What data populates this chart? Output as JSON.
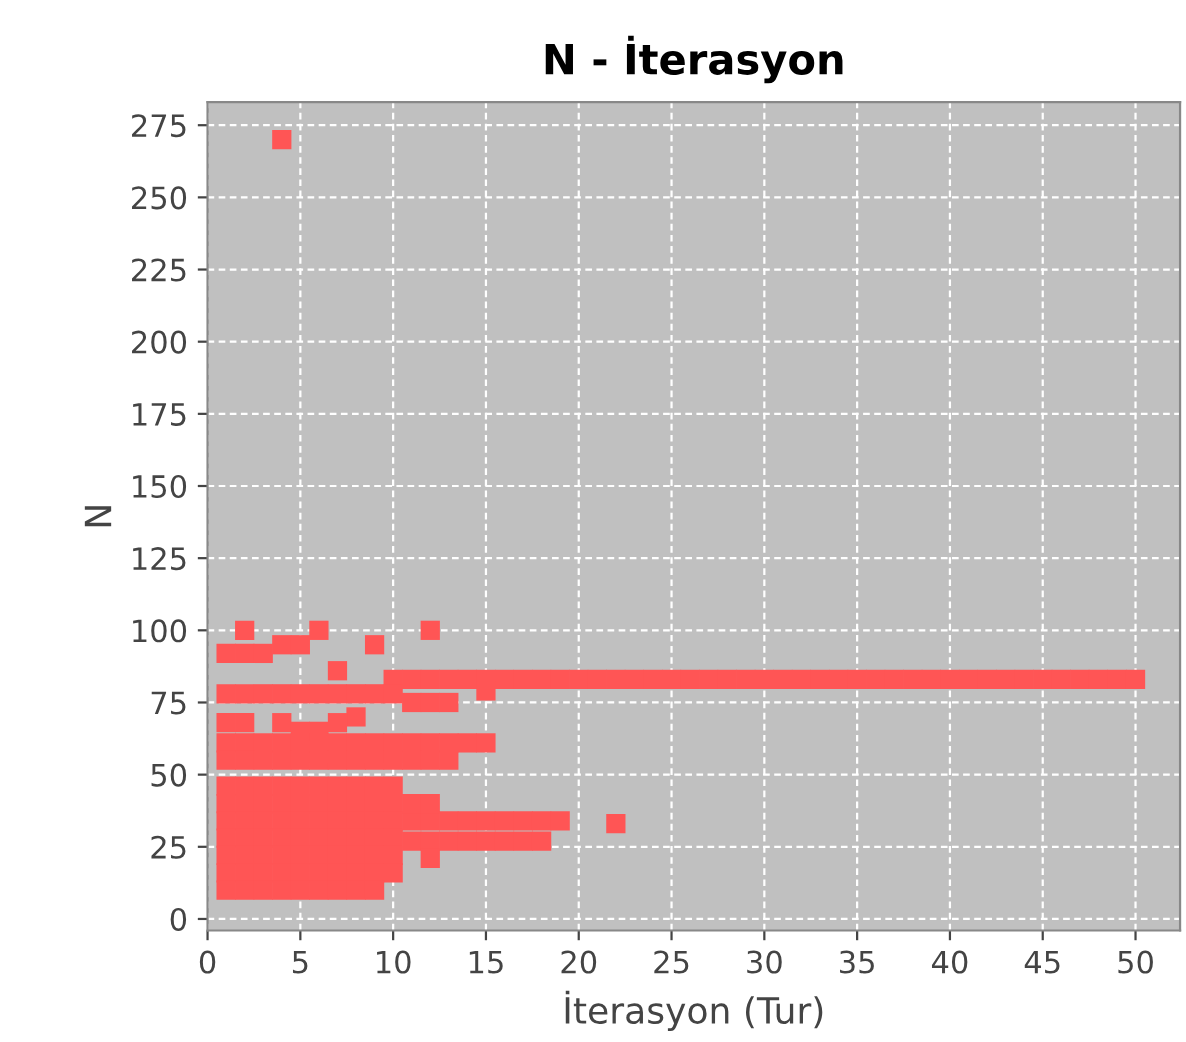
{
  "chart_data": {
    "type": "scatter",
    "title": "N - İterasyon",
    "xlabel": "İterasyon (Tur)",
    "ylabel": "N",
    "xlim": [
      0,
      52.4
    ],
    "ylim": [
      -4,
      283
    ],
    "xticks": [
      0,
      5,
      10,
      15,
      20,
      25,
      30,
      35,
      40,
      45,
      50
    ],
    "yticks": [
      0,
      25,
      50,
      75,
      100,
      125,
      150,
      175,
      200,
      225,
      250,
      275
    ],
    "grid": true,
    "marker": "square",
    "legend": false,
    "series": [
      {
        "color": "#ff5555",
        "x": [
          4,
          2,
          6,
          12,
          9,
          7,
          22,
          1,
          2,
          3,
          4,
          5,
          10,
          11,
          12,
          13,
          14,
          15,
          16,
          17,
          18,
          19,
          20,
          21,
          22,
          23,
          24,
          25,
          26,
          27,
          28,
          29,
          30,
          31,
          32,
          33,
          34,
          35,
          36,
          37,
          38,
          39,
          40,
          41,
          42,
          43,
          44,
          45,
          46,
          47,
          48,
          49,
          50,
          1,
          2,
          3,
          4,
          5,
          6,
          7,
          8,
          9,
          10,
          11,
          12,
          13,
          15,
          8,
          1,
          2,
          4,
          5,
          6,
          7,
          1,
          2,
          3,
          4,
          5,
          6,
          7,
          8,
          9,
          10,
          11,
          12,
          13,
          14,
          15,
          1,
          2,
          3,
          4,
          5,
          6,
          7,
          8,
          9,
          10,
          11,
          12,
          13,
          1,
          2,
          3,
          4,
          5,
          6,
          7,
          8,
          9,
          10,
          1,
          2,
          3,
          4,
          5,
          6,
          7,
          8,
          9,
          10,
          1,
          2,
          3,
          4,
          5,
          6,
          7,
          8,
          9,
          10,
          1,
          2,
          3,
          4,
          5,
          6,
          7,
          8,
          9,
          10,
          1,
          2,
          3,
          4,
          5,
          6,
          7,
          8,
          9,
          10,
          1,
          2,
          3,
          4,
          5,
          6,
          7,
          8,
          9,
          10,
          1,
          2,
          3,
          4,
          5,
          6,
          7,
          8,
          9,
          11,
          12,
          13,
          14,
          15,
          16,
          17,
          18,
          19,
          11,
          12,
          13,
          14,
          15,
          16,
          17,
          18,
          11,
          12,
          12
        ],
        "values": [
          270,
          100,
          100,
          100,
          95,
          86,
          33,
          92,
          92,
          92,
          95,
          95,
          83,
          83,
          83,
          83,
          83,
          83,
          83,
          83,
          83,
          83,
          83,
          83,
          83,
          83,
          83,
          83,
          83,
          83,
          83,
          83,
          83,
          83,
          83,
          83,
          83,
          83,
          83,
          83,
          83,
          83,
          83,
          83,
          83,
          83,
          83,
          83,
          83,
          83,
          83,
          83,
          83,
          78,
          78,
          78,
          78,
          78,
          78,
          78,
          78,
          78,
          78,
          75,
          75,
          75,
          79,
          70,
          68,
          68,
          68,
          65,
          65,
          68,
          61,
          61,
          61,
          61,
          61,
          61,
          61,
          61,
          61,
          61,
          61,
          61,
          61,
          61,
          61,
          55,
          55,
          55,
          55,
          55,
          55,
          55,
          55,
          55,
          55,
          55,
          55,
          55,
          46,
          46,
          46,
          46,
          46,
          46,
          46,
          46,
          46,
          46,
          40,
          40,
          40,
          40,
          40,
          40,
          40,
          40,
          40,
          40,
          34,
          34,
          34,
          34,
          34,
          34,
          34,
          34,
          34,
          34,
          28,
          28,
          28,
          28,
          28,
          28,
          28,
          28,
          28,
          28,
          22,
          22,
          22,
          22,
          22,
          22,
          22,
          22,
          22,
          22,
          16,
          16,
          16,
          16,
          16,
          16,
          16,
          16,
          16,
          16,
          10,
          10,
          10,
          10,
          10,
          10,
          10,
          10,
          10,
          34,
          34,
          34,
          34,
          34,
          34,
          34,
          34,
          34,
          27,
          27,
          27,
          27,
          27,
          27,
          27,
          27,
          40,
          40,
          21
        ]
      }
    ]
  }
}
